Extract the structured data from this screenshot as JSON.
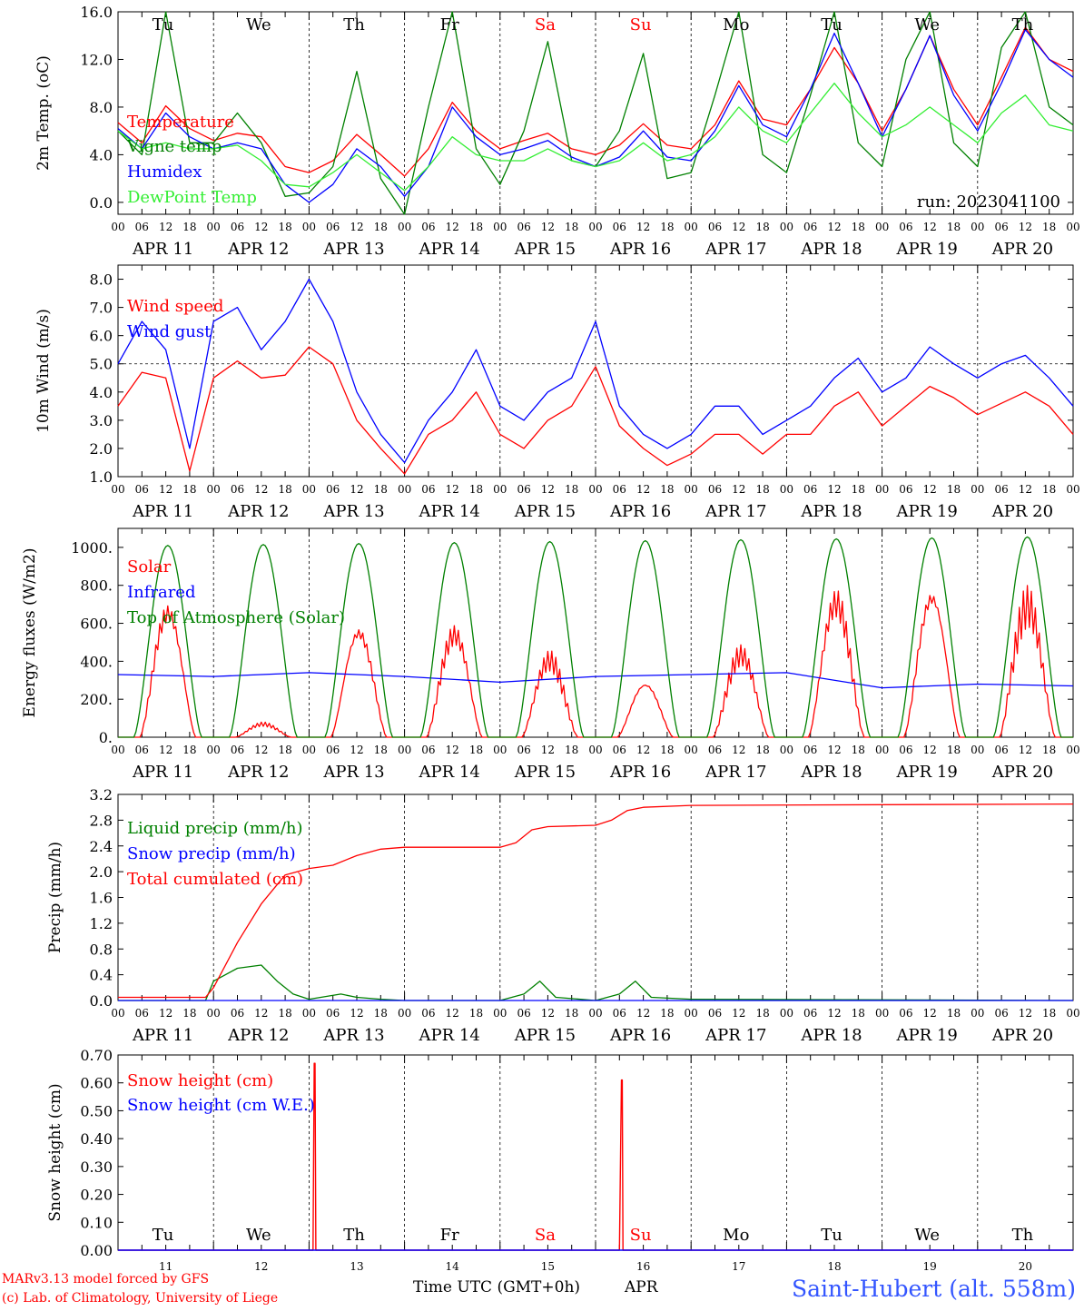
{
  "meta": {
    "run_label": "run: 2023041100",
    "footer_model": "MARv3.13 model forced by GFS",
    "footer_lab": "(c) Lab. of Climatology, University of Liege",
    "footer_axis": "Time UTC (GMT+0h)",
    "footer_month": "APR",
    "station": "Saint-Hubert (alt. 558m)"
  },
  "days": {
    "hour_ticks": [
      "00",
      "06",
      "12",
      "18"
    ],
    "date_labels": [
      "APR 11",
      "APR 12",
      "APR 13",
      "APR 14",
      "APR 15",
      "APR 16",
      "APR 17",
      "APR 18",
      "APR 19",
      "APR 20"
    ],
    "weekday_labels": [
      "Tu",
      "We",
      "Th",
      "Fr",
      "Sa",
      "Su",
      "Mo",
      "Tu",
      "We",
      "Th"
    ],
    "weekend_flags": [
      false,
      false,
      false,
      false,
      true,
      true,
      false,
      false,
      false,
      false
    ],
    "day_numbers": [
      "11",
      "12",
      "13",
      "14",
      "15",
      "16",
      "17",
      "18",
      "19",
      "20"
    ]
  },
  "colors": {
    "red": "#ff0000",
    "green": "#008000",
    "blue": "#0000ff",
    "light_green": "#33ee33",
    "station_blue": "#3355ff",
    "weekend_red": "#ff0000"
  },
  "chart_data": [
    {
      "type": "line",
      "ylabel": "2m Temp. (oC)",
      "ylim": [
        -1.0,
        16.0
      ],
      "yticks": [
        "0.0",
        "4.0",
        "8.0",
        "12.0",
        "16.0"
      ],
      "ytick_values": [
        0,
        4,
        8,
        12,
        16
      ],
      "x_unit": "hours since APR 11 00 UTC",
      "series": [
        {
          "name": "Temperature",
          "color": "#ff0000",
          "x": [
            0,
            6,
            12,
            18,
            24,
            30,
            36,
            42,
            48,
            54,
            60,
            66,
            72,
            78,
            84,
            90,
            96,
            102,
            108,
            114,
            120,
            126,
            132,
            138,
            144,
            150,
            156,
            162,
            168,
            174,
            180,
            186,
            192,
            198,
            204,
            210,
            216,
            222,
            228,
            234,
            240
          ],
          "y": [
            6.7,
            5.0,
            8.1,
            6.2,
            5.2,
            5.8,
            5.5,
            3.0,
            2.5,
            3.5,
            5.7,
            4.0,
            2.2,
            4.5,
            8.4,
            6.0,
            4.5,
            5.2,
            5.8,
            4.5,
            4.0,
            4.8,
            6.6,
            4.8,
            4.5,
            6.5,
            10.2,
            7.0,
            6.5,
            9.5,
            13.0,
            10.0,
            6.0,
            9.5,
            14.0,
            9.5,
            6.5,
            10.5,
            14.7,
            12.0,
            11.0
          ]
        },
        {
          "name": "Vigne temp",
          "color": "#008000",
          "x": [
            0,
            6,
            12,
            18,
            24,
            30,
            36,
            42,
            48,
            54,
            60,
            66,
            72,
            78,
            84,
            90,
            96,
            102,
            108,
            114,
            120,
            126,
            132,
            138,
            144,
            150,
            156,
            162,
            168,
            174,
            180,
            186,
            192,
            198,
            204,
            210,
            216,
            222,
            228,
            234,
            240
          ],
          "y": [
            6.0,
            4.0,
            16.0,
            5.0,
            5.0,
            7.5,
            5.0,
            0.5,
            0.8,
            3.0,
            11.0,
            2.0,
            -1.5,
            8.0,
            16.0,
            4.5,
            1.5,
            6.0,
            13.5,
            3.5,
            3.0,
            6.0,
            12.5,
            2.0,
            2.5,
            9.0,
            16.0,
            4.0,
            2.5,
            9.0,
            16.0,
            5.0,
            3.0,
            12.0,
            16.0,
            5.0,
            3.0,
            13.0,
            16.0,
            8.0,
            6.5
          ]
        },
        {
          "name": "Humidex",
          "color": "#0000ff",
          "x": [
            0,
            6,
            12,
            18,
            24,
            30,
            36,
            42,
            48,
            54,
            60,
            66,
            72,
            78,
            84,
            90,
            96,
            102,
            108,
            114,
            120,
            126,
            132,
            138,
            144,
            150,
            156,
            162,
            168,
            174,
            180,
            186,
            192,
            198,
            204,
            210,
            216,
            222,
            228,
            234,
            240
          ],
          "y": [
            6.2,
            4.5,
            7.5,
            5.5,
            4.5,
            5.0,
            4.5,
            1.5,
            0.0,
            1.5,
            4.5,
            3.0,
            0.5,
            3.0,
            8.0,
            5.5,
            4.0,
            4.5,
            5.2,
            3.8,
            3.0,
            3.8,
            6.0,
            3.8,
            3.5,
            6.0,
            9.8,
            6.5,
            5.5,
            9.5,
            14.2,
            10.0,
            5.5,
            9.5,
            14.0,
            9.0,
            6.0,
            10.0,
            14.5,
            12.0,
            10.5
          ]
        },
        {
          "name": "DewPoint Temp",
          "color": "#33ee33",
          "x": [
            0,
            6,
            12,
            18,
            24,
            30,
            36,
            42,
            48,
            54,
            60,
            66,
            72,
            78,
            84,
            90,
            96,
            102,
            108,
            114,
            120,
            126,
            132,
            138,
            144,
            150,
            156,
            162,
            168,
            174,
            180,
            186,
            192,
            198,
            204,
            210,
            216,
            222,
            228,
            234,
            240
          ],
          "y": [
            6.0,
            4.5,
            5.0,
            4.5,
            4.5,
            4.8,
            3.5,
            1.5,
            1.3,
            2.5,
            4.0,
            2.5,
            1.0,
            3.0,
            5.5,
            4.0,
            3.5,
            3.5,
            4.5,
            3.5,
            3.0,
            3.5,
            5.0,
            3.5,
            4.0,
            5.5,
            8.0,
            6.0,
            5.0,
            7.5,
            10.0,
            7.5,
            5.5,
            6.5,
            8.0,
            6.5,
            5.0,
            7.5,
            9.0,
            6.5,
            6.0
          ]
        }
      ]
    },
    {
      "type": "line",
      "ylabel": "10m Wind (m/s)",
      "ylim": [
        1.0,
        8.5
      ],
      "yticks": [
        "1.0",
        "2.0",
        "3.0",
        "4.0",
        "5.0",
        "6.0",
        "7.0",
        "8.0"
      ],
      "ytick_values": [
        1,
        2,
        3,
        4,
        5,
        6,
        7,
        8
      ],
      "series": [
        {
          "name": "Wind speed",
          "color": "#ff0000",
          "x": [
            0,
            6,
            12,
            18,
            24,
            30,
            36,
            42,
            48,
            54,
            60,
            66,
            72,
            78,
            84,
            90,
            96,
            102,
            108,
            114,
            120,
            126,
            132,
            138,
            144,
            150,
            156,
            162,
            168,
            174,
            180,
            186,
            192,
            198,
            204,
            210,
            216,
            222,
            228,
            234,
            240
          ],
          "y": [
            3.5,
            4.7,
            4.5,
            1.2,
            4.5,
            5.1,
            4.5,
            4.6,
            5.6,
            5.0,
            3.0,
            2.0,
            1.1,
            2.5,
            3.0,
            4.0,
            2.5,
            2.0,
            3.0,
            3.5,
            4.9,
            2.8,
            2.0,
            1.4,
            1.8,
            2.5,
            2.5,
            1.8,
            2.5,
            2.5,
            3.5,
            4.0,
            2.8,
            3.5,
            4.2,
            3.8,
            3.2,
            3.6,
            4.0,
            3.5,
            2.5
          ]
        },
        {
          "name": "Wind gust",
          "color": "#0000ff",
          "x": [
            0,
            6,
            12,
            18,
            24,
            30,
            36,
            42,
            48,
            54,
            60,
            66,
            72,
            78,
            84,
            90,
            96,
            102,
            108,
            114,
            120,
            126,
            132,
            138,
            144,
            150,
            156,
            162,
            168,
            174,
            180,
            186,
            192,
            198,
            204,
            210,
            216,
            222,
            228,
            234,
            240
          ],
          "y": [
            5.0,
            6.5,
            5.5,
            2.0,
            6.5,
            7.0,
            5.5,
            6.5,
            8.0,
            6.5,
            4.0,
            2.5,
            1.5,
            3.0,
            4.0,
            5.5,
            3.5,
            3.0,
            4.0,
            4.5,
            6.5,
            3.5,
            2.5,
            2.0,
            2.5,
            3.5,
            3.5,
            2.5,
            3.0,
            3.5,
            4.5,
            5.2,
            4.0,
            4.5,
            5.6,
            5.0,
            4.5,
            5.0,
            5.3,
            4.5,
            3.5
          ]
        }
      ]
    },
    {
      "type": "line",
      "ylabel": "Energy fluxes (W/m2)",
      "ylim": [
        0,
        1100
      ],
      "yticks": [
        "0.",
        "200.",
        "400.",
        "600.",
        "800.",
        "1000."
      ],
      "ytick_values": [
        0,
        200,
        400,
        600,
        800,
        1000
      ],
      "series": [
        {
          "name": "Solar",
          "color": "#ff0000",
          "days_peak": [
            720,
            80,
            600,
            600,
            460,
            300,
            490,
            790,
            800,
            800
          ]
        },
        {
          "name": "Infrared",
          "color": "#0000ff",
          "x": [
            0,
            24,
            48,
            72,
            96,
            120,
            144,
            168,
            192,
            216,
            240
          ],
          "y": [
            330,
            320,
            340,
            320,
            290,
            320,
            330,
            340,
            260,
            280,
            270
          ]
        },
        {
          "name": "Top of Atmosphere (Solar)",
          "color": "#008000",
          "days_peak": [
            1010,
            1015,
            1020,
            1025,
            1030,
            1035,
            1040,
            1045,
            1050,
            1055
          ]
        }
      ]
    },
    {
      "type": "line",
      "ylabel": "Precip (mm/h)",
      "ylim": [
        0,
        3.2
      ],
      "yticks": [
        "0.0",
        "0.4",
        "0.8",
        "1.2",
        "1.6",
        "2.0",
        "2.4",
        "2.8",
        "3.2"
      ],
      "ytick_values": [
        0,
        0.4,
        0.8,
        1.2,
        1.6,
        2.0,
        2.4,
        2.8,
        3.2
      ],
      "series": [
        {
          "name": "Liquid precip (mm/h)",
          "color": "#008000",
          "x": [
            0,
            22,
            24,
            30,
            36,
            40,
            44,
            48,
            56,
            60,
            66,
            72,
            96,
            102,
            106,
            110,
            120,
            126,
            130,
            134,
            144,
            240
          ],
          "y": [
            0,
            0,
            0.3,
            0.5,
            0.55,
            0.3,
            0.1,
            0.02,
            0.1,
            0.05,
            0.02,
            0,
            0,
            0.1,
            0.3,
            0.05,
            0,
            0.1,
            0.3,
            0.05,
            0.02,
            0
          ]
        },
        {
          "name": "Snow precip (mm/h)",
          "color": "#0000ff",
          "x": [
            0,
            240
          ],
          "y": [
            0,
            0
          ]
        },
        {
          "name": "Total cumulated (cm)",
          "color": "#ff0000",
          "x": [
            0,
            22,
            24,
            30,
            36,
            42,
            48,
            54,
            60,
            66,
            72,
            96,
            100,
            104,
            108,
            120,
            124,
            128,
            132,
            144,
            240
          ],
          "y": [
            0.05,
            0.05,
            0.2,
            0.9,
            1.5,
            1.95,
            2.05,
            2.1,
            2.25,
            2.35,
            2.38,
            2.38,
            2.45,
            2.65,
            2.7,
            2.72,
            2.8,
            2.95,
            3.0,
            3.03,
            3.05
          ]
        }
      ]
    },
    {
      "type": "line",
      "ylabel": "Snow height (cm)",
      "ylim": [
        0,
        0.7
      ],
      "yticks": [
        "0.00",
        "0.10",
        "0.20",
        "0.30",
        "0.40",
        "0.50",
        "0.60",
        "0.70"
      ],
      "ytick_values": [
        0,
        0.1,
        0.2,
        0.3,
        0.4,
        0.5,
        0.6,
        0.7
      ],
      "series": [
        {
          "name": "Snow height (cm)",
          "color": "#ff0000",
          "x": [
            0,
            49,
            49.3,
            49.5,
            49.7,
            50,
            126,
            126.5,
            126.7,
            126.9,
            127.2,
            240
          ],
          "y": [
            0,
            0,
            0.67,
            0.67,
            0,
            0,
            0,
            0.61,
            0.61,
            0,
            0,
            0
          ]
        },
        {
          "name": "Snow height (cm W.E.)",
          "color": "#0000ff",
          "x": [
            0,
            240
          ],
          "y": [
            0,
            0
          ]
        }
      ]
    }
  ]
}
